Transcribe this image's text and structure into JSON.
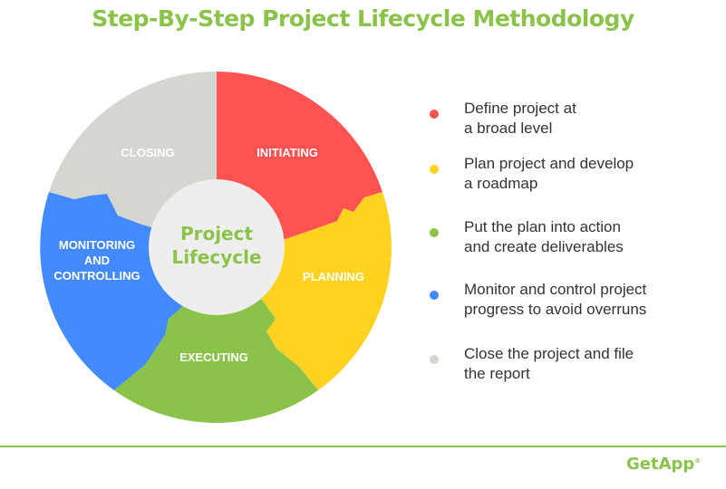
{
  "title": "Step-By-Step Project Lifecycle Methodology",
  "center_label": [
    "Project",
    "Lifecycle"
  ],
  "segments": [
    {
      "name": "initiating",
      "label": [
        "INITIATING"
      ],
      "color": "#ff5252"
    },
    {
      "name": "planning",
      "label": [
        "PLANNING"
      ],
      "color": "#ffd21f"
    },
    {
      "name": "executing",
      "label": [
        "EXECUTING"
      ],
      "color": "#8bc34a"
    },
    {
      "name": "monitoring",
      "label": [
        "MONITORING",
        "AND",
        "CONTROLLING"
      ],
      "color": "#448aff"
    },
    {
      "name": "closing",
      "label": [
        "CLOSING"
      ],
      "color": "#d6d6d1"
    }
  ],
  "legend": [
    {
      "text": "Define project at\na broad level",
      "color": "#ff5252"
    },
    {
      "text": "Plan project and develop\na roadmap",
      "color": "#ffd21f"
    },
    {
      "text": "Put the plan into action\nand create deliverables",
      "color": "#8bc34a"
    },
    {
      "text": "Monitor and control project\nprogress to avoid overruns",
      "color": "#448aff"
    },
    {
      "text": "Close the project and file\nthe report",
      "color": "#d6d6d1"
    }
  ],
  "brand": {
    "name": "GetApp",
    "mark": "®"
  }
}
